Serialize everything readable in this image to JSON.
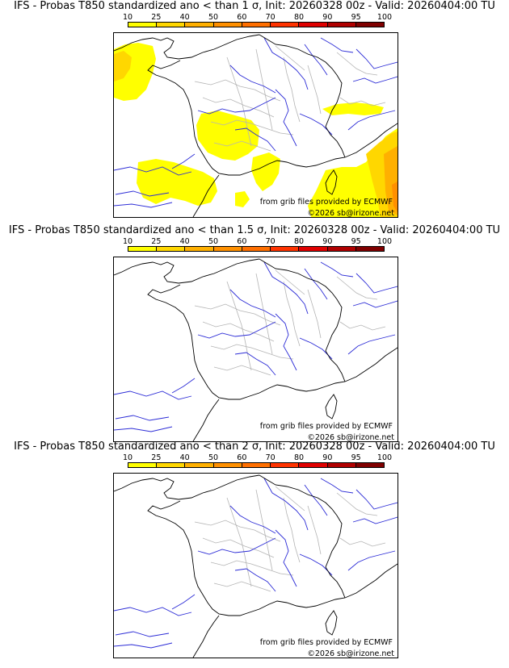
{
  "panels": [
    {
      "title": "IFS - Probas T850  standardized ano < than 1 σ, Init: 20260328 00z - Valid: 20260404:00 TU",
      "has_shading": true
    },
    {
      "title": "IFS - Probas T850  standardized ano < than 1.5 σ, Init: 20260328 00z - Valid: 20260404:00 TU",
      "has_shading": false
    },
    {
      "title": "IFS - Probas T850  standardized ano < than 2 σ, Init: 20260328 00z - Valid: 20260404:00 TU",
      "has_shading": false
    }
  ],
  "colorbar": {
    "ticks": [
      "10",
      "25",
      "40",
      "50",
      "60",
      "70",
      "80",
      "90",
      "95",
      "100"
    ],
    "colors": [
      "#ffff00",
      "#ffd700",
      "#ffb000",
      "#ff9000",
      "#ff6f00",
      "#ff3300",
      "#e00000",
      "#b00000",
      "#800000"
    ]
  },
  "credit_source": "from grib files provided by ECMWF",
  "credit_site": "©2026 sb@irizone.net"
}
